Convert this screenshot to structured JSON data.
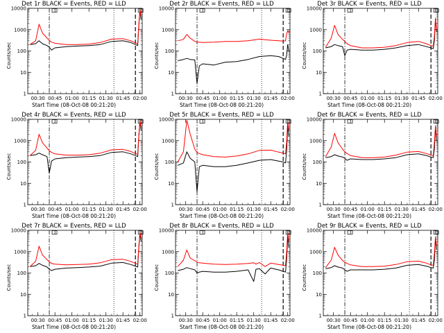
{
  "chart_data": {
    "type": "line",
    "layout": "3x3 grid",
    "y_scale": "log",
    "ylim": [
      1,
      10000
    ],
    "y_ticks": [
      "1",
      "10",
      "100",
      "1000",
      "10000"
    ],
    "ylabel": "Counts/sec",
    "xlabel": "Start Time (08-Oct-08 00:21:20)",
    "xlim": [
      "00:21",
      "02:02"
    ],
    "x_ticks": [
      "00:30",
      "00:45",
      "01:00",
      "01:15",
      "01:30",
      "01:45",
      "02:00"
    ],
    "series_colors": {
      "events": "#000000",
      "lld": "#ff0000"
    },
    "panels": [
      {
        "title": "Det 1r BLACK = Events, RED = LLD",
        "x": [
          "00:23",
          "00:28",
          "00:31",
          "00:34",
          "00:38",
          "00:40",
          "00:42",
          "00:45",
          "00:55",
          "01:05",
          "01:15",
          "01:25",
          "01:35",
          "01:45",
          "01:52",
          "01:56",
          "01:58",
          "01:59",
          "02:00",
          "02:01"
        ],
        "series": [
          {
            "values": [
              200,
              220,
              300,
              220,
              180,
              150,
              110,
              140,
              160,
              170,
              180,
              200,
              280,
              300,
              250,
              200,
              180,
              1500,
              8000,
              3000
            ]
          },
          {
            "values": [
              200,
              300,
              1800,
              700,
              400,
              320,
              260,
              230,
              200,
              200,
              210,
              250,
              360,
              380,
              300,
              240,
              220,
              1800,
              9000,
              4000
            ]
          }
        ],
        "vlines": [
          "00:40",
          "01:37",
          "01:56"
        ]
      },
      {
        "title": "Det 2r BLACK = Events, RED = LLD",
        "x": [
          "00:23",
          "00:28",
          "00:31",
          "00:34",
          "00:38",
          "00:40",
          "00:42",
          "00:45",
          "00:55",
          "01:05",
          "01:15",
          "01:25",
          "01:35",
          "01:45",
          "01:52",
          "01:56",
          "01:58",
          "01:59",
          "02:00",
          "02:01"
        ],
        "series": [
          {
            "values": [
              35,
              40,
              45,
              40,
              38,
              3,
              20,
              25,
              22,
              30,
              32,
              40,
              55,
              60,
              55,
              45,
              40,
              60,
              200,
              100
            ]
          },
          {
            "values": [
              300,
              350,
              600,
              400,
              280,
              260,
              260,
              250,
              260,
              280,
              280,
              300,
              360,
              320,
              300,
              290,
              300,
              600,
              900,
              700
            ]
          }
        ],
        "vlines": [
          "00:40",
          "01:37",
          "01:56"
        ]
      },
      {
        "title": "Det 3r BLACK = Events, RED = LLD",
        "x": [
          "00:23",
          "00:28",
          "00:31",
          "00:34",
          "00:38",
          "00:40",
          "00:42",
          "00:45",
          "00:55",
          "01:05",
          "01:15",
          "01:25",
          "01:35",
          "01:45",
          "01:52",
          "01:56",
          "01:58",
          "01:59",
          "02:00",
          "02:01"
        ],
        "series": [
          {
            "values": [
              140,
              160,
              200,
              180,
              160,
              60,
              110,
              120,
              110,
              110,
              120,
              140,
              180,
              200,
              160,
              140,
              130,
              300,
              3000,
              800
            ]
          },
          {
            "values": [
              150,
              400,
              1600,
              600,
              350,
              280,
              220,
              180,
              140,
              140,
              150,
              180,
              250,
              280,
              220,
              180,
              170,
              500,
              3500,
              1000
            ]
          }
        ],
        "vlines": [
          "00:40",
          "01:37",
          "01:56"
        ]
      },
      {
        "title": "Det 4r BLACK = Events, RED = LLD",
        "x": [
          "00:23",
          "00:28",
          "00:31",
          "00:34",
          "00:38",
          "00:40",
          "00:42",
          "00:45",
          "00:55",
          "01:05",
          "01:15",
          "01:25",
          "01:35",
          "01:45",
          "01:52",
          "01:56",
          "01:58",
          "01:59",
          "02:00",
          "02:01"
        ],
        "series": [
          {
            "values": [
              200,
              220,
              260,
              220,
              180,
              30,
              110,
              140,
              160,
              170,
              180,
              200,
              280,
              300,
              240,
              200,
              180,
              1500,
              8000,
              3000
            ]
          },
          {
            "values": [
              200,
              350,
              2000,
              800,
              450,
              340,
              280,
              240,
              210,
              210,
              220,
              260,
              370,
              390,
              310,
              250,
              230,
              1800,
              9000,
              4000
            ]
          }
        ],
        "vlines": [
          "00:40",
          "01:37",
          "01:56"
        ]
      },
      {
        "title": "Det 5r BLACK = Events, RED = LLD",
        "x": [
          "00:23",
          "00:28",
          "00:31",
          "00:34",
          "00:38",
          "00:40",
          "00:42",
          "00:45",
          "00:55",
          "01:05",
          "01:15",
          "01:25",
          "01:35",
          "01:45",
          "01:52",
          "01:56",
          "01:58",
          "01:59",
          "02:00",
          "02:01"
        ],
        "series": [
          {
            "values": [
              70,
              90,
              300,
              150,
              100,
              4,
              60,
              70,
              60,
              60,
              70,
              90,
              120,
              130,
              110,
              100,
              90,
              300,
              5000,
              1500
            ]
          },
          {
            "values": [
              100,
              300,
              9000,
              2000,
              400,
              280,
              250,
              220,
              180,
              170,
              190,
              240,
              350,
              360,
              290,
              260,
              240,
              800,
              8000,
              3000
            ]
          }
        ],
        "vlines": [
          "00:40",
          "01:37",
          "01:56"
        ]
      },
      {
        "title": "Det 6r BLACK = Events, RED = LLD",
        "x": [
          "00:23",
          "00:28",
          "00:31",
          "00:34",
          "00:38",
          "00:40",
          "00:42",
          "00:45",
          "00:55",
          "01:05",
          "01:15",
          "01:25",
          "01:35",
          "01:45",
          "01:52",
          "01:56",
          "01:58",
          "01:59",
          "02:00",
          "02:01"
        ],
        "series": [
          {
            "values": [
              160,
              180,
              220,
              190,
              170,
              150,
              120,
              140,
              130,
              130,
              140,
              160,
              220,
              240,
              200,
              170,
              160,
              400,
              4000,
              1000
            ]
          },
          {
            "values": [
              180,
              500,
              2200,
              800,
              400,
              300,
              250,
              200,
              160,
              160,
              170,
              210,
              290,
              310,
              250,
              210,
              200,
              800,
              5000,
              1500
            ]
          }
        ],
        "vlines": [
          "00:40",
          "01:37",
          "01:56"
        ]
      },
      {
        "title": "Det 7r BLACK = Events, RED = LLD",
        "x": [
          "00:23",
          "00:28",
          "00:31",
          "00:34",
          "00:38",
          "00:40",
          "00:42",
          "00:45",
          "00:55",
          "01:05",
          "01:15",
          "01:25",
          "01:35",
          "01:45",
          "01:52",
          "01:56",
          "01:58",
          "01:59",
          "02:00",
          "02:01"
        ],
        "series": [
          {
            "values": [
              200,
              220,
              280,
              230,
              190,
              150,
              130,
              150,
              170,
              180,
              190,
              210,
              290,
              310,
              250,
              210,
              190,
              1500,
              7000,
              3000
            ]
          },
          {
            "values": [
              200,
              350,
              1800,
              700,
              420,
              340,
              280,
              260,
              240,
              250,
              260,
              300,
              420,
              440,
              350,
              280,
              260,
              1800,
              8000,
              4000
            ]
          }
        ],
        "vlines": [
          "00:40",
          "01:37",
          "01:56"
        ]
      },
      {
        "title": "Det 8r BLACK = Events, RED = LLD",
        "x": [
          "00:23",
          "00:28",
          "00:31",
          "00:34",
          "00:38",
          "00:40",
          "00:42",
          "00:45",
          "00:55",
          "01:05",
          "01:15",
          "01:25",
          "01:30",
          "01:32",
          "01:35",
          "01:40",
          "01:45",
          "01:52",
          "01:56",
          "01:58",
          "01:59",
          "02:00",
          "02:01"
        ],
        "series": [
          {
            "values": [
              130,
              150,
              180,
              160,
              140,
              100,
              110,
              120,
              110,
              110,
              120,
              140,
              40,
              150,
              160,
              90,
              170,
              140,
              120,
              110,
              400,
              5000,
              1500
            ]
          },
          {
            "values": [
              200,
              400,
              1200,
              500,
              380,
              320,
              300,
              290,
              260,
              250,
              260,
              280,
              300,
              260,
              310,
              200,
              290,
              250,
              230,
              220,
              900,
              8000,
              3000
            ]
          }
        ],
        "vlines": [
          "00:40",
          "01:37",
          "01:56"
        ]
      },
      {
        "title": "Det 9r BLACK = Events, RED = LLD",
        "x": [
          "00:23",
          "00:28",
          "00:31",
          "00:34",
          "00:38",
          "00:40",
          "00:42",
          "00:45",
          "00:55",
          "01:05",
          "01:15",
          "01:25",
          "01:35",
          "01:45",
          "01:52",
          "01:56",
          "01:58",
          "01:59",
          "02:00",
          "02:01"
        ],
        "series": [
          {
            "values": [
              160,
              180,
              220,
              190,
              170,
              140,
              120,
              140,
              140,
              140,
              150,
              170,
              230,
              250,
              210,
              180,
              170,
              400,
              4000,
              1200
            ]
          },
          {
            "values": [
              180,
              400,
              1600,
              700,
              380,
              320,
              280,
              240,
              200,
              200,
              210,
              250,
              340,
              360,
              290,
              240,
              230,
              800,
              5000,
              1800
            ]
          }
        ],
        "vlines": [
          "00:40",
          "01:37",
          "01:56"
        ]
      }
    ]
  }
}
